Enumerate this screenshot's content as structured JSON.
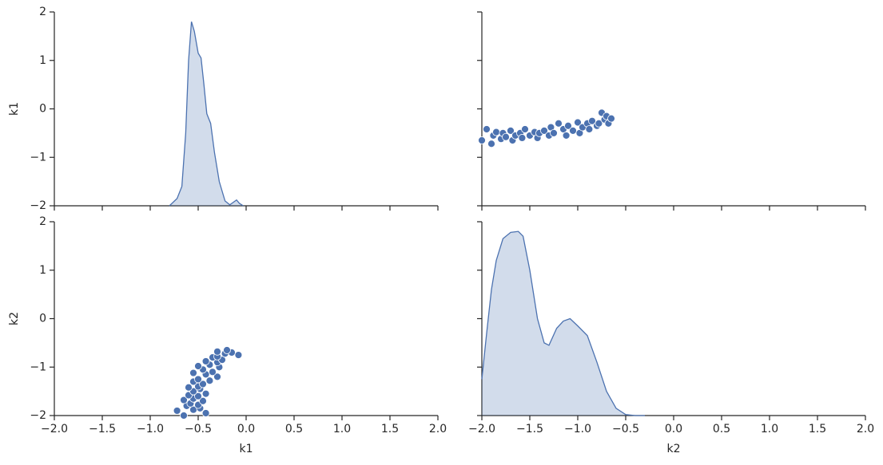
{
  "chart_data": [
    {
      "type": "kde",
      "color": "#4c72b0",
      "ylabel": "k1",
      "xticklabels": false,
      "x": [
        -0.8,
        -0.72,
        -0.67,
        -0.63,
        -0.6,
        -0.57,
        -0.54,
        -0.5,
        -0.47,
        -0.44,
        -0.41,
        -0.37,
        -0.33,
        -0.28,
        -0.22,
        -0.17,
        -0.1,
        -0.07,
        -0.03
      ],
      "values": [
        -2,
        -1.85,
        -1.6,
        -0.5,
        1.0,
        1.8,
        1.6,
        1.15,
        1.05,
        0.5,
        -0.1,
        -0.3,
        -0.9,
        -1.5,
        -1.9,
        -1.98,
        -1.88,
        -1.95,
        -2
      ],
      "xlim": [
        -2,
        2
      ],
      "ylim": [
        -2,
        2
      ],
      "xticks": [
        -2,
        -1.5,
        -1,
        -0.5,
        0,
        0.5,
        1,
        1.5,
        2
      ],
      "yticks": [
        {
          "value": -2,
          "label": "−2"
        },
        {
          "value": -1,
          "label": "−1"
        },
        0,
        1,
        2
      ]
    },
    {
      "type": "scatter",
      "color": "#4c72b0",
      "xticklabels": false,
      "yticklabels": false,
      "x": [
        -2.0,
        -1.95,
        -1.9,
        -1.88,
        -1.85,
        -1.8,
        -1.78,
        -1.75,
        -1.7,
        -1.68,
        -1.65,
        -1.6,
        -1.58,
        -1.55,
        -1.5,
        -1.45,
        -1.42,
        -1.4,
        -1.35,
        -1.3,
        -1.28,
        -1.25,
        -1.2,
        -1.15,
        -1.12,
        -1.1,
        -1.05,
        -1.0,
        -0.98,
        -0.95,
        -0.9,
        -0.88,
        -0.85,
        -0.8,
        -0.78,
        -0.75,
        -0.72,
        -0.7,
        -0.68,
        -0.65
      ],
      "values": [
        -0.65,
        -0.42,
        -0.72,
        -0.55,
        -0.48,
        -0.62,
        -0.5,
        -0.58,
        -0.45,
        -0.65,
        -0.55,
        -0.5,
        -0.6,
        -0.42,
        -0.55,
        -0.48,
        -0.6,
        -0.5,
        -0.45,
        -0.55,
        -0.38,
        -0.5,
        -0.3,
        -0.42,
        -0.55,
        -0.35,
        -0.45,
        -0.28,
        -0.5,
        -0.38,
        -0.3,
        -0.42,
        -0.25,
        -0.35,
        -0.3,
        -0.08,
        -0.22,
        -0.15,
        -0.3,
        -0.2
      ],
      "xlim": [
        -2,
        2
      ],
      "ylim": [
        -2,
        2
      ],
      "xticks": [
        -2,
        -1.5,
        -1,
        -0.5,
        0,
        0.5,
        1,
        1.5,
        2
      ],
      "yticks": [
        -2,
        -1,
        0,
        1,
        2
      ]
    },
    {
      "type": "scatter",
      "color": "#4c72b0",
      "xlabel": "k1",
      "ylabel": "k2",
      "x": [
        -0.65,
        -0.42,
        -0.72,
        -0.55,
        -0.48,
        -0.62,
        -0.5,
        -0.58,
        -0.45,
        -0.65,
        -0.55,
        -0.5,
        -0.6,
        -0.42,
        -0.55,
        -0.48,
        -0.6,
        -0.5,
        -0.45,
        -0.55,
        -0.38,
        -0.5,
        -0.3,
        -0.42,
        -0.55,
        -0.35,
        -0.45,
        -0.28,
        -0.5,
        -0.38,
        -0.3,
        -0.42,
        -0.25,
        -0.35,
        -0.3,
        -0.08,
        -0.22,
        -0.15,
        -0.3,
        -0.2
      ],
      "values": [
        -2.0,
        -1.95,
        -1.9,
        -1.88,
        -1.85,
        -1.8,
        -1.78,
        -1.75,
        -1.7,
        -1.68,
        -1.65,
        -1.6,
        -1.58,
        -1.55,
        -1.5,
        -1.45,
        -1.42,
        -1.4,
        -1.35,
        -1.3,
        -1.28,
        -1.25,
        -1.2,
        -1.15,
        -1.12,
        -1.1,
        -1.05,
        -1.0,
        -0.98,
        -0.95,
        -0.9,
        -0.88,
        -0.85,
        -0.8,
        -0.78,
        -0.75,
        -0.72,
        -0.7,
        -0.68,
        -0.65
      ],
      "xlim": [
        -2,
        2
      ],
      "ylim": [
        -2,
        2
      ],
      "xticks": [
        {
          "value": -2,
          "label": "−2.0"
        },
        {
          "value": -1.5,
          "label": "−1.5"
        },
        {
          "value": -1,
          "label": "−1.0"
        },
        {
          "value": -0.5,
          "label": "−0.5"
        },
        {
          "value": 0,
          "label": "0.0"
        },
        0.5,
        {
          "value": 1,
          "label": "1.0"
        },
        1.5,
        {
          "value": 2,
          "label": "2.0"
        }
      ],
      "yticks": [
        {
          "value": -2,
          "label": "−2"
        },
        {
          "value": -1,
          "label": "−1"
        },
        0,
        1,
        2
      ]
    },
    {
      "type": "kde",
      "color": "#4c72b0",
      "xlabel": "k2",
      "yticklabels": false,
      "x": [
        -2,
        -1.95,
        -1.9,
        -1.85,
        -1.78,
        -1.7,
        -1.62,
        -1.57,
        -1.5,
        -1.42,
        -1.35,
        -1.3,
        -1.22,
        -1.15,
        -1.08,
        -1.0,
        -0.9,
        -0.8,
        -0.7,
        -0.6,
        -0.5,
        -0.4,
        -0.3
      ],
      "values": [
        -1.25,
        -0.3,
        0.6,
        1.2,
        1.65,
        1.78,
        1.8,
        1.7,
        1.0,
        0.0,
        -0.5,
        -0.55,
        -0.2,
        -0.05,
        0.0,
        -0.15,
        -0.35,
        -0.9,
        -1.5,
        -1.85,
        -1.98,
        -2,
        -2
      ],
      "xlim": [
        -2,
        2
      ],
      "ylim": [
        -2,
        2
      ],
      "xticks": [
        {
          "value": -2,
          "label": "−2.0"
        },
        {
          "value": -1.5,
          "label": "−1.5"
        },
        {
          "value": -1,
          "label": "−1.0"
        },
        {
          "value": -0.5,
          "label": "−0.5"
        },
        {
          "value": 0,
          "label": "0.0"
        },
        0.5,
        {
          "value": 1,
          "label": "1.0"
        },
        1.5,
        {
          "value": 2,
          "label": "2.0"
        }
      ],
      "yticks": [
        -2,
        -1,
        0,
        1,
        2
      ]
    }
  ]
}
